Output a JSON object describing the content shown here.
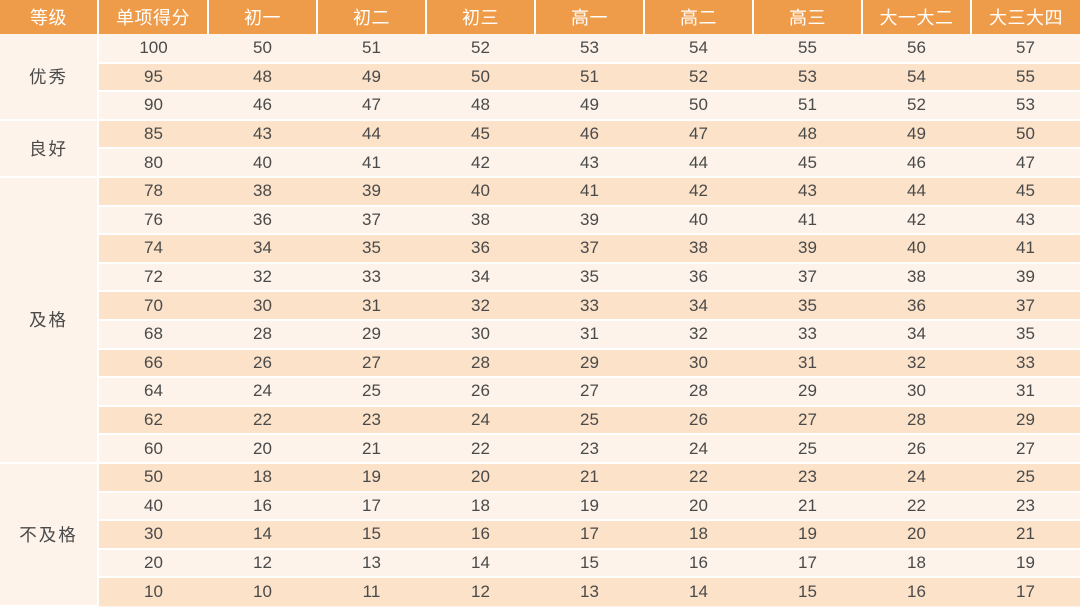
{
  "table": {
    "type": "table",
    "header_bg": "#ef9c4a",
    "header_fg": "#ffffff",
    "stripe_light": "#fdf3ea",
    "stripe_dark": "#fbe2c9",
    "text_color": "#4a4a4a",
    "border_color": "#ffffff",
    "header_fontsize": 18,
    "cell_fontsize": 17,
    "columns": [
      "等级",
      "单项得分",
      "初一",
      "初二",
      "初三",
      "高一",
      "高二",
      "高三",
      "大一大二",
      "大三大四"
    ],
    "groups": [
      {
        "label": "优秀",
        "span": 3
      },
      {
        "label": "良好",
        "span": 2
      },
      {
        "label": "及格",
        "span": 10
      },
      {
        "label": "不及格",
        "span": 5
      }
    ],
    "rows": [
      [
        100,
        50,
        51,
        52,
        53,
        54,
        55,
        56,
        57
      ],
      [
        95,
        48,
        49,
        50,
        51,
        52,
        53,
        54,
        55
      ],
      [
        90,
        46,
        47,
        48,
        49,
        50,
        51,
        52,
        53
      ],
      [
        85,
        43,
        44,
        45,
        46,
        47,
        48,
        49,
        50
      ],
      [
        80,
        40,
        41,
        42,
        43,
        44,
        45,
        46,
        47
      ],
      [
        78,
        38,
        39,
        40,
        41,
        42,
        43,
        44,
        45
      ],
      [
        76,
        36,
        37,
        38,
        39,
        40,
        41,
        42,
        43
      ],
      [
        74,
        34,
        35,
        36,
        37,
        38,
        39,
        40,
        41
      ],
      [
        72,
        32,
        33,
        34,
        35,
        36,
        37,
        38,
        39
      ],
      [
        70,
        30,
        31,
        32,
        33,
        34,
        35,
        36,
        37
      ],
      [
        68,
        28,
        29,
        30,
        31,
        32,
        33,
        34,
        35
      ],
      [
        66,
        26,
        27,
        28,
        29,
        30,
        31,
        32,
        33
      ],
      [
        64,
        24,
        25,
        26,
        27,
        28,
        29,
        30,
        31
      ],
      [
        62,
        22,
        23,
        24,
        25,
        26,
        27,
        28,
        29
      ],
      [
        60,
        20,
        21,
        22,
        23,
        24,
        25,
        26,
        27
      ],
      [
        50,
        18,
        19,
        20,
        21,
        22,
        23,
        24,
        25
      ],
      [
        40,
        16,
        17,
        18,
        19,
        20,
        21,
        22,
        23
      ],
      [
        30,
        14,
        15,
        16,
        17,
        18,
        19,
        20,
        21
      ],
      [
        20,
        12,
        13,
        14,
        15,
        16,
        17,
        18,
        19
      ],
      [
        10,
        10,
        11,
        12,
        13,
        14,
        15,
        16,
        17
      ]
    ]
  }
}
